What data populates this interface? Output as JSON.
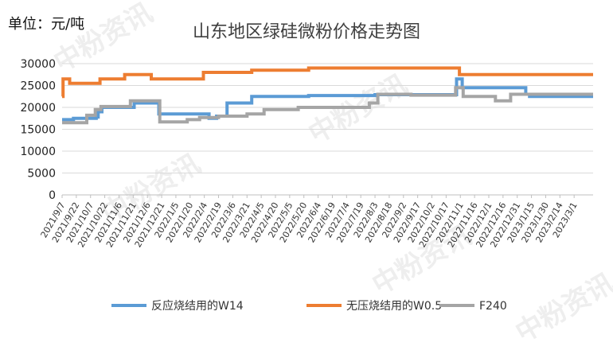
{
  "unit_label": "单位：元/吨",
  "watermark": "中粉资讯",
  "chart_data": {
    "type": "line",
    "title": "山东地区绿硅微粉价格走势图",
    "xlabel": "",
    "ylabel": "",
    "ylim": [
      0,
      30000
    ],
    "yticks": [
      0,
      5000,
      10000,
      15000,
      20000,
      25000,
      30000
    ],
    "x_start": "2021/9/7",
    "x_end": "2023/3/21",
    "x_tick_labels": [
      "2021/9/7",
      "2021/9/22",
      "2021/10/7",
      "2021/10/22",
      "2021/11/6",
      "2021/11/21",
      "2021/12/6",
      "2021/12/21",
      "2022/1/5",
      "2022/1/20",
      "2022/2/4",
      "2022/2/19",
      "2022/3/6",
      "2022/3/21",
      "2022/4/5",
      "2022/4/20",
      "2022/5/5",
      "2022/5/20",
      "2022/6/4",
      "2022/6/19",
      "2022/7/4",
      "2022/7/19",
      "2022/8/3",
      "2022/8/18",
      "2022/9/2",
      "2022/9/17",
      "2022/10/2",
      "2022/10/17",
      "2022/11/1",
      "2022/11/16",
      "2022/12/1",
      "2022/12/16",
      "2022/12/31",
      "2023/1/15",
      "2023/1/30",
      "2023/2/14",
      "2023/3/1"
    ],
    "grid": "y",
    "legend_position": "bottom",
    "series": [
      {
        "name": "反应烧结用的W14",
        "color": "#5B9BD5",
        "points": [
          [
            "2021/9/7",
            17200
          ],
          [
            "2021/9/19",
            17500
          ],
          [
            "2021/10/13",
            17800
          ],
          [
            "2021/10/15",
            19000
          ],
          [
            "2021/10/19",
            20000
          ],
          [
            "2021/11/22",
            21000
          ],
          [
            "2021/12/18",
            18500
          ],
          [
            "2022/2/9",
            17500
          ],
          [
            "2022/2/17",
            18000
          ],
          [
            "2022/2/28",
            21000
          ],
          [
            "2022/3/26",
            22500
          ],
          [
            "2022/5/25",
            22700
          ],
          [
            "2022/8/3",
            22900
          ],
          [
            "2022/10/28",
            26500
          ],
          [
            "2022/11/3",
            24500
          ],
          [
            "2023/1/9",
            23000
          ],
          [
            "2023/1/13",
            22500
          ],
          [
            "2023/3/21",
            22500
          ]
        ]
      },
      {
        "name": "无压烧结用的W0.5",
        "color": "#ED7D31",
        "points": [
          [
            "2021/9/7",
            22500
          ],
          [
            "2021/9/8",
            26500
          ],
          [
            "2021/9/15",
            25500
          ],
          [
            "2021/10/17",
            26500
          ],
          [
            "2021/11/12",
            27500
          ],
          [
            "2021/12/10",
            26500
          ],
          [
            "2022/2/3",
            28000
          ],
          [
            "2022/3/26",
            28500
          ],
          [
            "2022/5/25",
            29000
          ],
          [
            "2022/10/31",
            27500
          ],
          [
            "2023/3/21",
            27500
          ]
        ]
      },
      {
        "name": "F240",
        "color": "#A5A5A5",
        "points": [
          [
            "2021/9/7",
            16500
          ],
          [
            "2021/10/3",
            18200
          ],
          [
            "2021/10/12",
            19500
          ],
          [
            "2021/10/18",
            20200
          ],
          [
            "2021/11/18",
            21500
          ],
          [
            "2021/12/19",
            16700
          ],
          [
            "2022/1/17",
            17200
          ],
          [
            "2022/1/30",
            17700
          ],
          [
            "2022/2/19",
            18000
          ],
          [
            "2022/3/21",
            18500
          ],
          [
            "2022/4/8",
            19500
          ],
          [
            "2022/5/14",
            20000
          ],
          [
            "2022/7/28",
            21000
          ],
          [
            "2022/8/6",
            23000
          ],
          [
            "2022/9/10",
            22800
          ],
          [
            "2022/10/27",
            24500
          ],
          [
            "2022/11/4",
            22500
          ],
          [
            "2022/12/8",
            21500
          ],
          [
            "2022/12/24",
            23000
          ],
          [
            "2023/3/21",
            23000
          ]
        ]
      }
    ]
  }
}
